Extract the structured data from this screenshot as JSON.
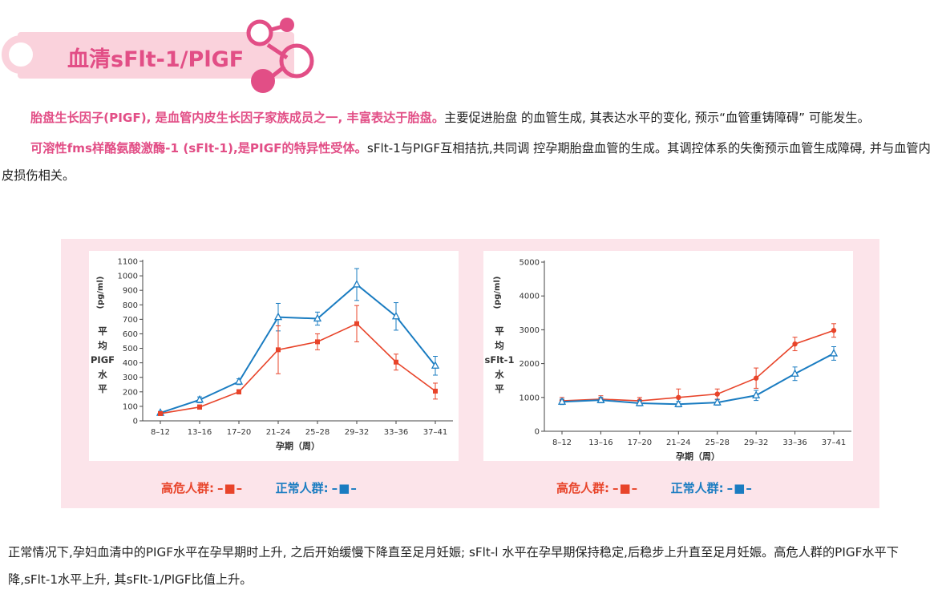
{
  "header": {
    "title": "血清sFlt-1/PlGF"
  },
  "intro": {
    "p1_highlight": "胎盘生长因子(PIGF), 是血管内皮生长因子家族成员之一, 丰富表达于胎盘。",
    "p1_text": "主要促进胎盘 的血管生成, 其表达水平的变化, 预示“血管重铸障碍” 可能发生。",
    "p2_highlight": "可溶性fms样酪氨酸激酶-1 (sFlt-1),是PIGF的特异性受体。",
    "p2_text": "sFlt-1与PIGF互相拮抗,共同调 控孕期胎盘血管的生成。其调控体系的失衡预示血管生成障碍, 并与血管内皮损伤相关。"
  },
  "legend": {
    "high_risk": "高危人群:",
    "normal": "正常人群:",
    "high_risk_symbol": "–■–",
    "normal_symbol": "–■–"
  },
  "colors": {
    "high_risk": "#e8442a",
    "normal": "#1a7cc1",
    "accent": "#e24e86",
    "banner_pink": "#fad2dc",
    "panel_bg": "#fce4ea"
  },
  "chart_data": [
    {
      "type": "line",
      "ylabel_unit": "(pg/ml)",
      "ylabel": [
        "平",
        "均",
        "PIGF",
        "水",
        "平"
      ],
      "xlabel": "孕期（周）",
      "categories": [
        "8–12",
        "13–16",
        "17–20",
        "21–24",
        "25–28",
        "29–32",
        "33–36",
        "37–41"
      ],
      "ylim": [
        0,
        1100
      ],
      "yticks": [
        0,
        100,
        200,
        300,
        400,
        500,
        600,
        700,
        800,
        900,
        1000,
        1100
      ],
      "series": [
        {
          "key": "normal",
          "marker": "triangle",
          "values": [
            55,
            145,
            270,
            715,
            705,
            940,
            720,
            380
          ],
          "err": [
            10,
            20,
            20,
            95,
            45,
            110,
            95,
            65
          ]
        },
        {
          "key": "high_risk",
          "marker": "square",
          "values": [
            50,
            95,
            200,
            490,
            545,
            670,
            405,
            205
          ],
          "err": [
            8,
            15,
            15,
            165,
            55,
            125,
            55,
            55
          ]
        }
      ]
    },
    {
      "type": "line",
      "ylabel_unit": "(pg/ml)",
      "ylabel": [
        "平",
        "均",
        "sFlt-1",
        "水",
        "平"
      ],
      "xlabel": "孕期（周）",
      "categories": [
        "8–12",
        "13–16",
        "17–20",
        "21–24",
        "25–28",
        "29–32",
        "33–36",
        "37–41"
      ],
      "ylim": [
        0,
        5000
      ],
      "yticks": [
        0,
        1000,
        2000,
        3000,
        4000,
        5000
      ],
      "series": [
        {
          "key": "high_risk",
          "marker": "circle",
          "values": [
            900,
            950,
            900,
            1000,
            1100,
            1570,
            2580,
            2980
          ],
          "err": [
            100,
            100,
            100,
            250,
            150,
            300,
            200,
            200
          ]
        },
        {
          "key": "normal",
          "marker": "triangle",
          "values": [
            870,
            920,
            830,
            800,
            850,
            1060,
            1700,
            2300
          ],
          "err": [
            80,
            80,
            80,
            80,
            80,
            150,
            200,
            200
          ]
        }
      ]
    }
  ],
  "bottom": {
    "text": "正常情况下,孕妇血清中的PIGF水平在孕早期时上升, 之后开始缓慢下降直至足月妊娠; sFlt-l 水平在孕早期保持稳定,后稳步上升直至足月妊娠。高危人群的PIGF水平下降,sFlt-1水平上升, 其sFlt-1/PlGF比值上升。"
  }
}
